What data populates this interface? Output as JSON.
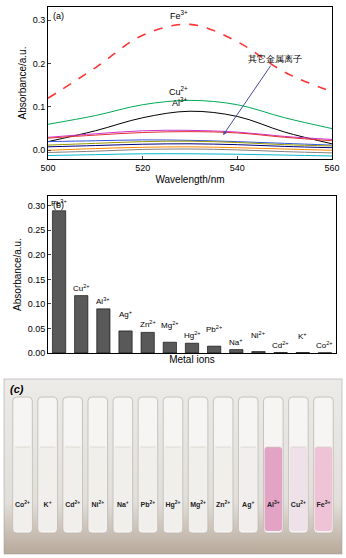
{
  "chart_data": [
    {
      "type": "line",
      "label": "(a)",
      "x_label": "Wavelength/nm",
      "y_label": "Absorbance/a.u.",
      "x": [
        500,
        510,
        520,
        530,
        540,
        550,
        560
      ],
      "series": [
        {
          "name": "Fe3+",
          "color": "#ff3333",
          "line_style": "dash",
          "values": [
            0.12,
            0.19,
            0.265,
            0.29,
            0.25,
            0.18,
            0.135
          ]
        },
        {
          "name": "Cu2+",
          "color": "#00aa55",
          "line_style": "solid",
          "values": [
            0.06,
            0.08,
            0.105,
            0.115,
            0.105,
            0.075,
            0.05
          ]
        },
        {
          "name": "Al3+",
          "color": "#000000",
          "line_style": "solid",
          "values": [
            0.02,
            0.045,
            0.075,
            0.09,
            0.078,
            0.042,
            0.015
          ]
        },
        {
          "color": "#cc33cc",
          "line_style": "solid",
          "values": [
            0.03,
            0.038,
            0.045,
            0.046,
            0.042,
            0.032,
            0.025
          ]
        },
        {
          "color": "#e03030",
          "line_style": "solid",
          "values": [
            0.028,
            0.035,
            0.041,
            0.043,
            0.04,
            0.03,
            0.022
          ]
        },
        {
          "color": "#3355dd",
          "line_style": "solid",
          "values": [
            0.02,
            0.022,
            0.024,
            0.023,
            0.02,
            0.016,
            0.012
          ]
        },
        {
          "color": "#999900",
          "line_style": "solid",
          "values": [
            0.012,
            0.016,
            0.02,
            0.021,
            0.018,
            0.013,
            0.01
          ]
        },
        {
          "color": "#000080",
          "line_style": "solid",
          "values": [
            0.008,
            0.011,
            0.014,
            0.015,
            0.013,
            0.009,
            0.006
          ]
        },
        {
          "color": "#ff8800",
          "line_style": "solid",
          "values": [
            0.0,
            0.004,
            0.007,
            0.008,
            0.006,
            0.003,
            0.0
          ]
        },
        {
          "color": "#808080",
          "line_style": "solid",
          "values": [
            -0.005,
            -0.002,
            0.002,
            0.003,
            0.001,
            -0.003,
            -0.006
          ]
        },
        {
          "color": "#00bbcc",
          "line_style": "solid",
          "values": [
            -0.012,
            -0.01,
            -0.008,
            -0.008,
            -0.009,
            -0.011,
            -0.013
          ]
        }
      ],
      "annotations": [
        {
          "text": "其它金属离子"
        }
      ],
      "xlim": [
        500,
        560
      ],
      "xticks": [
        500,
        520,
        540,
        560
      ],
      "ylim": [
        -0.02,
        0.33
      ],
      "yticks": [
        {
          "value": 0,
          "label": "0.0"
        },
        0.1,
        0.2,
        0.3
      ],
      "grid": false
    },
    {
      "type": "bar",
      "label": "(b)",
      "x_label": "Metal ions",
      "y_label": "Absorbance/a.u.",
      "categories": [
        "Fe3+",
        "Cu2+",
        "Al3+",
        "Ag+",
        "Zn2+",
        "Mg2+",
        "Hg2+",
        "Pb2+",
        "Na+",
        "Ni2+",
        "Cd2+",
        "K+",
        "Co2+"
      ],
      "values": [
        0.29,
        0.117,
        0.09,
        0.045,
        0.042,
        0.022,
        0.02,
        0.014,
        0.007,
        0.003,
        0.001,
        0.001,
        0.0005
      ],
      "color": "#595959",
      "ylim": [
        0,
        0.32
      ],
      "yticks": [
        {
          "value": 0,
          "label": "0.00"
        },
        {
          "value": 0.05,
          "label": "0.05"
        },
        {
          "value": 0.1,
          "label": "0.10"
        },
        {
          "value": 0.15,
          "label": "0.15"
        },
        {
          "value": 0.2,
          "label": "0.20"
        },
        {
          "value": 0.25,
          "label": "0.25"
        },
        {
          "value": 0.3,
          "label": "0.30"
        }
      ],
      "tick_labels": "y",
      "grid": false
    }
  ],
  "photo": {
    "label": "(c)",
    "samples": [
      "Co2+",
      "K+",
      "Cd2+",
      "Ni2+",
      "Na+",
      "Pb2+",
      "Hg2+",
      "Mg2+",
      "Zn2+",
      "Ag+",
      "Al3+",
      "Cu2+",
      "Fe3+"
    ],
    "colors": [
      "#f1efec",
      "#f1efec",
      "#f1efec",
      "#f1efec",
      "#f1efec",
      "#f1efec",
      "#f1efec",
      "#f1efec",
      "#f1efec",
      "#f2eeee",
      "#e2a3c4",
      "#eee2e8",
      "#efc3d6"
    ]
  }
}
